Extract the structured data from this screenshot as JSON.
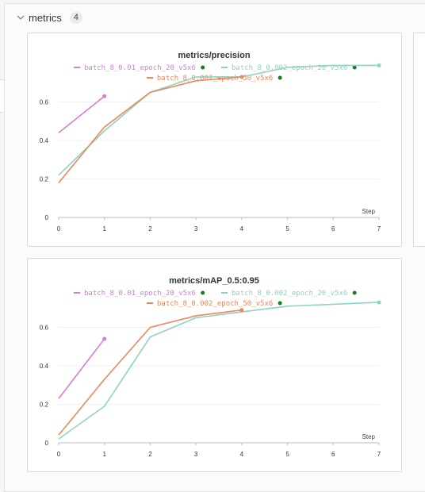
{
  "section": {
    "title": "metrics",
    "count": "4"
  },
  "charts": [
    {
      "title": "metrics/precision",
      "step_label": "Step",
      "x_ticks": [
        0,
        1,
        2,
        3,
        4,
        5,
        6,
        7
      ],
      "y_ticks": [
        0,
        0.2,
        0.4,
        0.6
      ],
      "y_tick_labels": [
        "0",
        "0.2",
        "0.4",
        "0.6"
      ]
    },
    {
      "title": "metrics/mAP_0.5:0.95",
      "step_label": "Step",
      "x_ticks": [
        0,
        1,
        2,
        3,
        4,
        5,
        6,
        7
      ],
      "y_ticks": [
        0,
        0.2,
        0.4,
        0.6
      ],
      "y_tick_labels": [
        "0",
        "0.2",
        "0.4",
        "0.6"
      ]
    }
  ],
  "chart_data": [
    {
      "type": "line",
      "title": "metrics/precision",
      "xlabel": "Step",
      "ylabel": "",
      "xlim": [
        0,
        7
      ],
      "ylim": [
        0,
        0.8
      ],
      "grid": true,
      "legend": "top",
      "series": [
        {
          "name": "batch_8_0.01_epoch_20_v5x6",
          "color": "#d37fd4",
          "x": [
            0,
            1
          ],
          "y": [
            0.44,
            0.63
          ]
        },
        {
          "name": "batch_8_0.002_epoch_20_v5x6",
          "color": "#8fd3c1",
          "x": [
            0,
            1,
            2,
            3,
            4,
            5,
            6,
            7
          ],
          "y": [
            0.22,
            0.45,
            0.65,
            0.73,
            0.73,
            0.78,
            0.79,
            0.79
          ]
        },
        {
          "name": "batch_8_0.002_epoch_50_v5x6",
          "color": "#e8885c",
          "x": [
            0,
            1,
            2,
            3,
            4
          ],
          "y": [
            0.18,
            0.47,
            0.65,
            0.71,
            0.73
          ]
        }
      ]
    },
    {
      "type": "line",
      "title": "metrics/mAP_0.5:0.95",
      "xlabel": "Step",
      "ylabel": "",
      "xlim": [
        0,
        7
      ],
      "ylim": [
        0,
        0.8
      ],
      "grid": true,
      "legend": "top",
      "series": [
        {
          "name": "batch_8_0.01_epoch_20_v5x6",
          "color": "#d37fd4",
          "x": [
            0,
            1
          ],
          "y": [
            0.23,
            0.54
          ]
        },
        {
          "name": "batch_8_0.002_epoch_20_v5x6",
          "color": "#8fd3c1",
          "x": [
            0,
            1,
            2,
            3,
            4,
            5,
            6,
            7
          ],
          "y": [
            0.02,
            0.19,
            0.55,
            0.65,
            0.68,
            0.71,
            0.72,
            0.73
          ]
        },
        {
          "name": "batch_8_0.002_epoch_50_v5x6",
          "color": "#e8885c",
          "x": [
            0,
            1,
            2,
            3,
            4
          ],
          "y": [
            0.04,
            0.33,
            0.6,
            0.66,
            0.69
          ]
        }
      ]
    }
  ]
}
